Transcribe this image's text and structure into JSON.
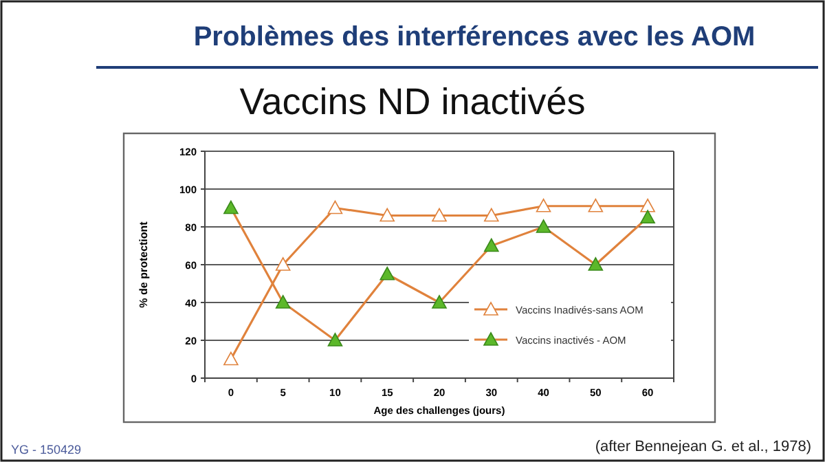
{
  "chart_data": {
    "type": "line",
    "title": "Problèmes des interférences avec les AOM",
    "subtitle": "Vaccins ND inactivés",
    "xlabel": "Age des challenges (jours)",
    "ylabel": "% de protectiont",
    "categories": [
      "0",
      "5",
      "10",
      "15",
      "20",
      "30",
      "40",
      "50",
      "60"
    ],
    "series": [
      {
        "name": "Vaccins Inadivés-sans AOM",
        "color": "#e0823c",
        "values": [
          10,
          60,
          90,
          86,
          86,
          86,
          91,
          91,
          91
        ]
      },
      {
        "name": "Vaccins inactivés - AOM",
        "color": "#5cb82a",
        "values": [
          90,
          40,
          20,
          55,
          40,
          70,
          80,
          60,
          85
        ]
      }
    ],
    "ylim": [
      0,
      120
    ],
    "yticks": [
      0,
      20,
      40,
      60,
      80,
      100,
      120
    ],
    "grid": "y",
    "legend": "right",
    "marker": "triangle",
    "annotations": [
      "YG - 150429",
      "(after Bennejean G. et al., 1978)"
    ]
  }
}
